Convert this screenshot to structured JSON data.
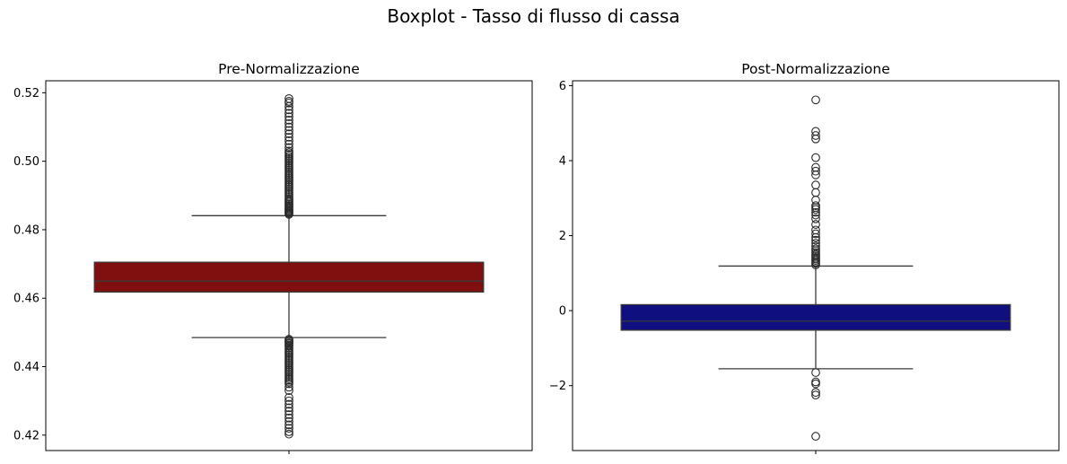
{
  "figure": {
    "title": "Boxplot - Tasso di flusso di cassa"
  },
  "chart_data": [
    {
      "type": "box",
      "title": "Pre-Normalizzazione",
      "xlabel": "",
      "ylabel": "",
      "ylim": [
        0.4155,
        0.5235
      ],
      "yticks": [
        0.42,
        0.44,
        0.46,
        0.48,
        0.5,
        0.52
      ],
      "ytick_labels": [
        "0.42",
        "0.44",
        "0.46",
        "0.48",
        "0.50",
        "0.52"
      ],
      "box": {
        "whisker_low": 0.4485,
        "q1": 0.4618,
        "median": 0.465,
        "q3": 0.4705,
        "whisker_high": 0.4841
      },
      "fill_color": "#800f0f",
      "line_color": "#3a3a3a",
      "outliers": [
        0.4845,
        0.4848,
        0.4851,
        0.4854,
        0.4857,
        0.486,
        0.4863,
        0.4866,
        0.487,
        0.4874,
        0.4878,
        0.4882,
        0.4886,
        0.489,
        0.4895,
        0.49,
        0.4905,
        0.491,
        0.4915,
        0.492,
        0.4925,
        0.493,
        0.4935,
        0.494,
        0.4945,
        0.495,
        0.4955,
        0.496,
        0.4965,
        0.497,
        0.4975,
        0.498,
        0.4985,
        0.499,
        0.4995,
        0.5,
        0.5005,
        0.501,
        0.5015,
        0.502,
        0.5025,
        0.503,
        0.504,
        0.505,
        0.506,
        0.507,
        0.508,
        0.509,
        0.51,
        0.511,
        0.512,
        0.513,
        0.514,
        0.515,
        0.516,
        0.517,
        0.5175,
        0.5183,
        0.448,
        0.4477,
        0.4474,
        0.447,
        0.4467,
        0.4463,
        0.446,
        0.4455,
        0.445,
        0.4445,
        0.444,
        0.4435,
        0.443,
        0.4425,
        0.442,
        0.4415,
        0.441,
        0.4405,
        0.44,
        0.4395,
        0.439,
        0.4385,
        0.438,
        0.4375,
        0.437,
        0.4365,
        0.436,
        0.4355,
        0.435,
        0.434,
        0.433,
        0.431,
        0.43,
        0.429,
        0.428,
        0.427,
        0.426,
        0.425,
        0.424,
        0.423,
        0.422,
        0.421,
        0.4203
      ]
    },
    {
      "type": "box",
      "title": "Post-Normalizzazione",
      "xlabel": "",
      "ylabel": "",
      "ylim": [
        -3.73,
        6.13
      ],
      "yticks": [
        -2,
        0,
        2,
        4,
        6
      ],
      "ytick_labels": [
        "−2",
        "0",
        "2",
        "4",
        "6"
      ],
      "box": {
        "whisker_low": -1.55,
        "q1": -0.52,
        "median": -0.28,
        "q3": 0.16,
        "whisker_high": 1.19
      },
      "fill_color": "#0f0f80",
      "line_color": "#3a3a3a",
      "outliers": [
        1.22,
        1.26,
        1.3,
        1.34,
        1.38,
        1.42,
        1.46,
        1.5,
        1.55,
        1.6,
        1.65,
        1.72,
        1.8,
        1.88,
        1.95,
        2.05,
        2.15,
        2.3,
        2.45,
        2.55,
        2.62,
        2.7,
        2.75,
        2.8,
        2.95,
        3.15,
        3.35,
        3.62,
        3.72,
        3.82,
        4.08,
        4.58,
        4.67,
        4.78,
        5.62,
        -1.65,
        -1.9,
        -1.95,
        -2.18,
        -2.25,
        -3.35
      ]
    }
  ]
}
